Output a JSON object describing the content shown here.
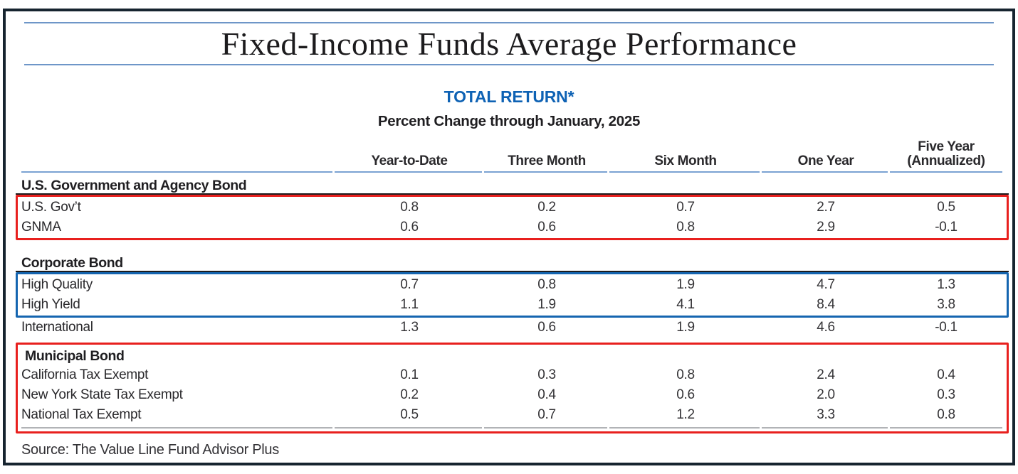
{
  "colors": {
    "frame": "#16242f",
    "accent_blue": "#0e62b4",
    "title_rule_blue": "#6e96c8",
    "header_rule_blue": "#7aa2d2",
    "highlight_red": "#e8201e",
    "highlight_blue": "#1565b0",
    "gray_rule": "#b1b3b6",
    "text": "#262528"
  },
  "title": "Fixed-Income Funds Average Performance",
  "table_heading": {
    "line1": "TOTAL RETURN*",
    "line2": "Percent Change through January, 2025"
  },
  "columns": [
    {
      "label": "Year-to-Date"
    },
    {
      "label": "Three Month"
    },
    {
      "label": "Six Month"
    },
    {
      "label": "One Year"
    },
    {
      "label": "Five Year",
      "label2": "(Annualized)"
    }
  ],
  "sections": [
    {
      "name": "U.S. Government and Agency Bond",
      "highlight": "red",
      "rows": [
        {
          "label": "U.S. Gov’t",
          "values": [
            "0.8",
            "0.2",
            "0.7",
            "2.7",
            "0.5"
          ]
        },
        {
          "label": "GNMA",
          "values": [
            "0.6",
            "0.6",
            "0.8",
            "2.9",
            "-0.1"
          ]
        }
      ]
    },
    {
      "name": "Corporate Bond",
      "highlight": "blue",
      "rows": [
        {
          "label": "High Quality",
          "values": [
            "0.7",
            "0.8",
            "1.9",
            "4.7",
            "1.3"
          ]
        },
        {
          "label": "High Yield",
          "values": [
            "1.1",
            "1.9",
            "4.1",
            "8.4",
            "3.8"
          ]
        }
      ],
      "rows_outside_box": [
        {
          "label": "International",
          "values": [
            "1.3",
            "0.6",
            "1.9",
            "4.6",
            "-0.1"
          ]
        }
      ]
    },
    {
      "name": "Municipal Bond",
      "highlight": "red",
      "header_inside_box": true,
      "rows": [
        {
          "label": "California Tax Exempt",
          "values": [
            "0.1",
            "0.3",
            "0.8",
            "2.4",
            "0.4"
          ]
        },
        {
          "label": "New York State Tax Exempt",
          "values": [
            "0.2",
            "0.4",
            "0.6",
            "2.0",
            "0.3"
          ]
        },
        {
          "label": "National Tax Exempt",
          "values": [
            "0.5",
            "0.7",
            "1.2",
            "3.3",
            "0.8"
          ]
        }
      ]
    }
  ],
  "source": "Source: The Value Line Fund Advisor Plus"
}
